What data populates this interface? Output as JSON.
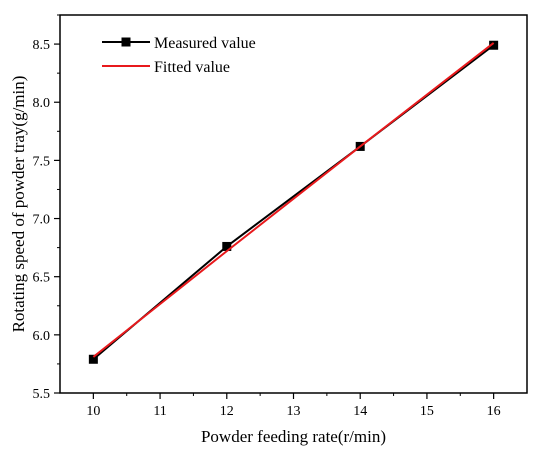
{
  "chart_data": {
    "type": "line",
    "title": "",
    "xlabel": "Powder feeding rate(r/min)",
    "ylabel": "Rotating speed of powder tray(g/min)",
    "xlim": [
      9.5,
      16.5
    ],
    "ylim": [
      5.5,
      8.75
    ],
    "xticks": [
      10,
      11,
      12,
      13,
      14,
      15,
      16
    ],
    "yticks": [
      5.5,
      6.0,
      6.5,
      7.0,
      7.5,
      8.0,
      8.5
    ],
    "ytick_labels": [
      "5.5",
      "6.0",
      "6.5",
      "7.0",
      "7.5",
      "8.0",
      "8.5"
    ],
    "grid": false,
    "legend_position": "top-left",
    "series": [
      {
        "name": "Measured value",
        "color": "#000000",
        "marker": "square",
        "x": [
          10,
          12,
          14,
          16
        ],
        "y": [
          5.79,
          6.76,
          7.62,
          8.49
        ]
      },
      {
        "name": "Fitted value",
        "color": "#e8191c",
        "marker": "none",
        "x": [
          10,
          12,
          14,
          16
        ],
        "y": [
          5.81,
          6.72,
          7.62,
          8.51
        ]
      }
    ]
  }
}
